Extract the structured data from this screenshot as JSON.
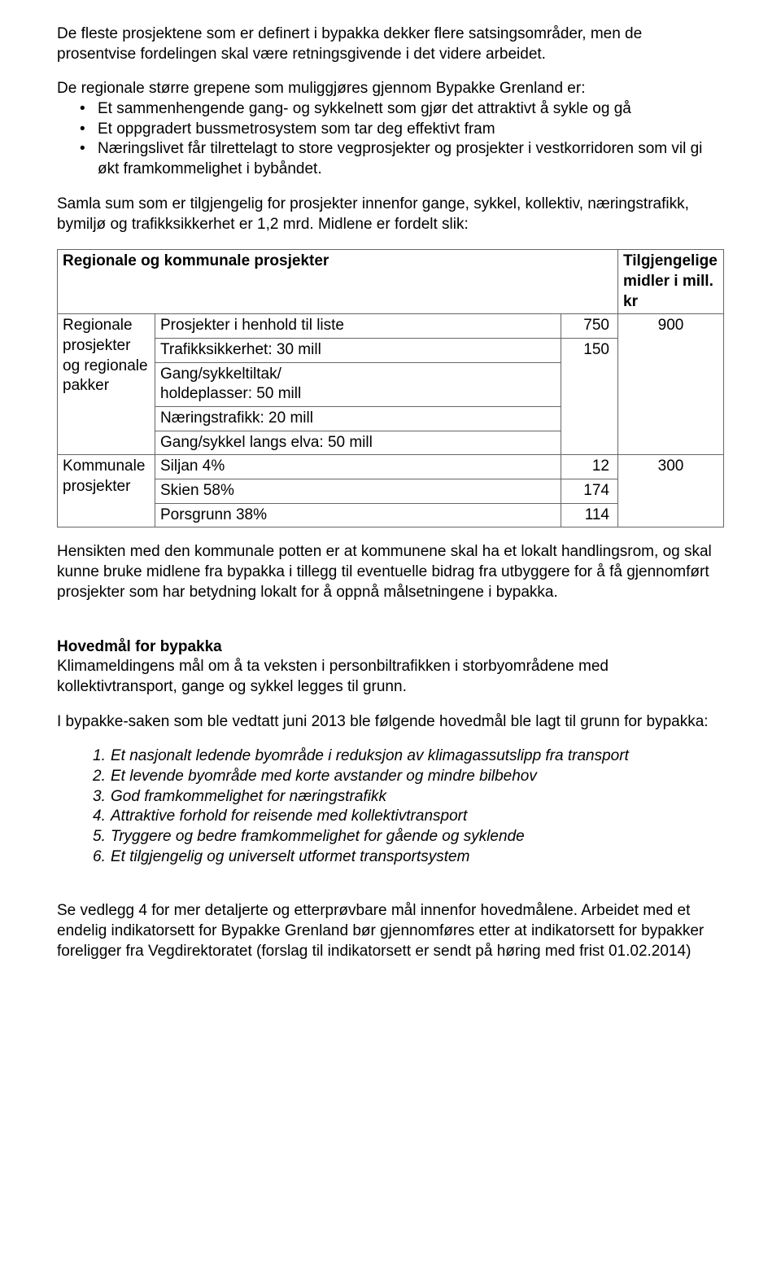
{
  "para1": "De fleste prosjektene som er definert i bypakka dekker flere satsingsområder, men de prosentvise fordelingen skal være retningsgivende i det videre arbeidet.",
  "para2_intro": "De regionale større grepene som muliggjøres gjennom Bypakke Grenland er:",
  "bullets1": [
    "Et sammenhengende gang- og sykkelnett som gjør det attraktivt å sykle og gå",
    "Et oppgradert bussmetrosystem som tar deg effektivt fram",
    "Næringslivet får tilrettelagt to store vegprosjekter og prosjekter i vestkorridoren som vil gi økt framkommelighet i bybåndet."
  ],
  "para3": "Samla sum som er tilgjengelig for prosjekter innenfor gange, sykkel, kollektiv, næringstrafikk, bymiljø og trafikksikkerhet er 1,2 mrd. Midlene er fordelt slik:",
  "table": {
    "header_left": "Regionale og kommunale prosjekter",
    "header_right_l1": "Tilgjengelige",
    "header_right_l2": "midler i mill. kr",
    "regional_label_l1": "Regionale",
    "regional_label_l2": "prosjekter",
    "regional_label_l3": "og regionale",
    "regional_label_l4": "pakker",
    "r1_desc": "Prosjekter i henhold til liste",
    "r1_val": "750",
    "regional_total": "900",
    "r2_desc": "Trafikksikkerhet: 30 mill",
    "r2_val": "150",
    "r3_desc_l1": "Gang/sykkeltiltak/",
    "r3_desc_l2": "holdeplasser: 50 mill",
    "r4_desc": "Næringstrafikk: 20 mill",
    "r5_desc": "Gang/sykkel langs elva: 50 mill",
    "kommunale_label_l1": "Kommunale",
    "kommunale_label_l2": "prosjekter",
    "k1_desc": "Siljan 4%",
    "k1_val": "12",
    "kommunale_total": "300",
    "k2_desc": "Skien 58%",
    "k2_val": "174",
    "k3_desc": "Porsgrunn 38%",
    "k3_val": "114"
  },
  "para4": "Hensikten med den kommunale potten er at kommunene skal ha et lokalt handlingsrom, og skal kunne bruke midlene fra bypakka i tillegg til eventuelle bidrag fra utbyggere for å få gjennomført prosjekter som har betydning lokalt for å oppnå målsetningene i bypakka.",
  "heading1": "Hovedmål for bypakka",
  "para5": "Klimameldingens mål om å ta veksten i personbiltrafikken i storbyområdene med kollektivtransport, gange og sykkel legges til grunn.",
  "para6": "I bypakke-saken som ble vedtatt juni 2013 ble følgende hovedmål ble lagt til grunn for bypakka:",
  "goals": [
    "Et nasjonalt ledende byområde i reduksjon av klimagassutslipp fra transport",
    "Et levende byområde med korte avstander og mindre bilbehov",
    "God framkommelighet for næringstrafikk",
    "Attraktive forhold for reisende med kollektivtransport",
    "Tryggere og bedre framkommelighet for gående og syklende",
    "Et tilgjengelig og universelt utformet transportsystem"
  ],
  "para7": "Se vedlegg 4 for mer detaljerte og etterprøvbare mål innenfor hovedmålene. Arbeidet med et endelig indikatorsett for Bypakke Grenland bør gjennomføres etter at indikatorsett for bypakker foreligger fra Vegdirektoratet (forslag til indikatorsett er sendt på høring med frist 01.02.2014)"
}
